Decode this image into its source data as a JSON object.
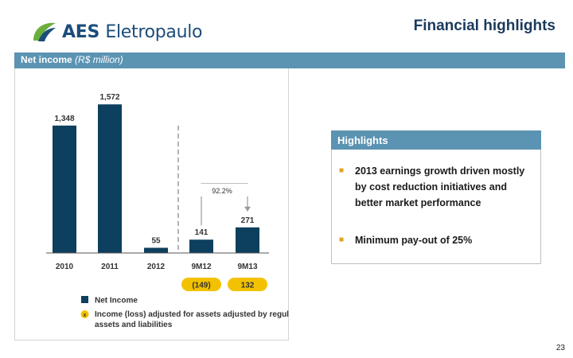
{
  "header": {
    "logo_text_bold": "AES",
    "logo_text_light": "Eletropaulo",
    "title": "Financial highlights"
  },
  "banner": {
    "label": "Net income",
    "unit": "(R$ million)"
  },
  "chart_data": {
    "type": "bar",
    "categories": [
      "2010",
      "2011",
      "2012",
      "9M12",
      "9M13"
    ],
    "series": [
      {
        "name": "Net Income",
        "values": [
          1348,
          1572,
          55,
          141,
          271
        ]
      }
    ],
    "value_labels": [
      "1,348",
      "1,572",
      "55",
      "141",
      "271"
    ],
    "adjusted_values": [
      {
        "category": "9M12",
        "value": -149,
        "label": "(149)"
      },
      {
        "category": "9M13",
        "value": 132,
        "label": "132"
      }
    ],
    "growth_annotation": "92.2%",
    "legend": [
      {
        "label": "Net Income",
        "marker": "square",
        "color": "#0d3f5e"
      },
      {
        "label": "Income (loss) adjusted for assets adjusted by regulatory assets and liabilities",
        "marker": "x-circle",
        "color": "#f2c200"
      }
    ],
    "legend_marker_text": "x",
    "ylim": [
      0,
      1700
    ],
    "grid": false,
    "colors": {
      "bar": "#0d3f5e",
      "adjusted": "#f2c200",
      "divider": "#9a9a9a",
      "arrow": "#9a9a9a"
    }
  },
  "highlights": {
    "title": "Highlights",
    "items": [
      {
        "parts": [
          {
            "text": "2013 earnings growth driven mostly by ",
            "bold": true
          },
          {
            "text": "cost reduction initiatives",
            "bold": true
          },
          {
            "text": " and ",
            "bold": true
          },
          {
            "text": "better market performance",
            "bold": true
          }
        ]
      },
      {
        "parts": [
          {
            "text": "Minimum pay-out",
            "bold": true
          },
          {
            "text": " of ",
            "bold": true
          },
          {
            "text": "25%",
            "bold": true
          }
        ]
      }
    ]
  },
  "footer": {
    "page_number": "23"
  },
  "colors": {
    "accent": "#5b93b2",
    "title": "#1b3a5c",
    "bullet": "#e0a020"
  }
}
